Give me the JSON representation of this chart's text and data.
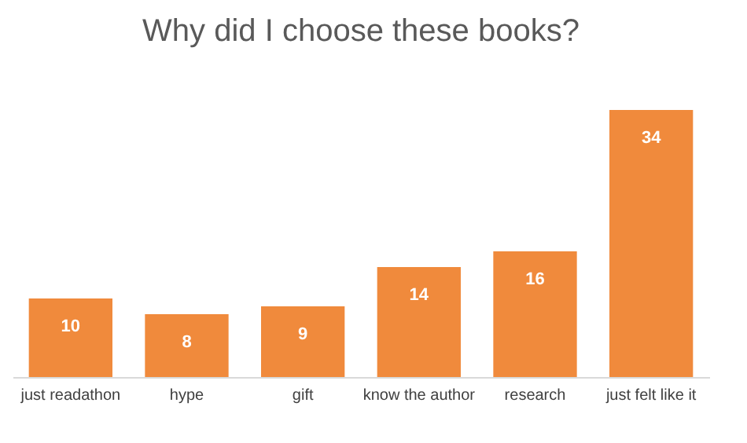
{
  "chart_data": {
    "type": "bar",
    "title": "Why did I choose these books?",
    "categories": [
      "just readathon",
      "hype",
      "gift",
      "know the author",
      "research",
      "just felt like it"
    ],
    "values": [
      10,
      8,
      9,
      14,
      16,
      34
    ],
    "color": "#f08a3c",
    "data_labels": true
  }
}
